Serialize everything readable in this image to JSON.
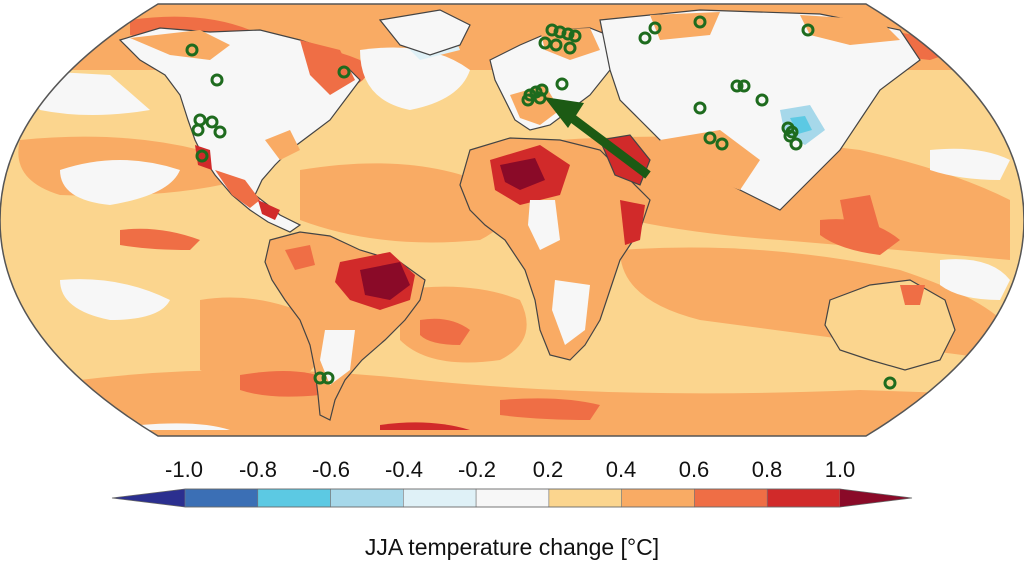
{
  "map": {
    "projection": "robinson-like",
    "land_outline_color": "#444444",
    "ocean_base_color": "#fbd58e",
    "marker_color": "#1e6b1e",
    "arrow_color": "#1c5a14",
    "arrow_direction": "from Arabian Peninsula toward Central Europe",
    "marker_count": 38
  },
  "legend": {
    "caption": "JJA temperature change [°C]",
    "ticks": [
      "-1.0",
      "-0.8",
      "-0.6",
      "-0.4",
      "-0.2",
      "0.2",
      "0.4",
      "0.6",
      "0.8",
      "1.0"
    ],
    "min_color": "#2b2f8f",
    "max_color": "#8a0a28",
    "bins": [
      {
        "from": -1.0,
        "to": -0.8,
        "color": "#3b6fb5"
      },
      {
        "from": -0.8,
        "to": -0.6,
        "color": "#5cc9e3"
      },
      {
        "from": -0.6,
        "to": -0.4,
        "color": "#a6d8ea"
      },
      {
        "from": -0.4,
        "to": -0.2,
        "color": "#dff1f7"
      },
      {
        "from": -0.2,
        "to": 0.2,
        "color": "#f7f7f7"
      },
      {
        "from": 0.2,
        "to": 0.4,
        "color": "#fbd58e"
      },
      {
        "from": 0.4,
        "to": 0.6,
        "color": "#f9ab64"
      },
      {
        "from": 0.6,
        "to": 0.8,
        "color": "#ef6e45"
      },
      {
        "from": 0.8,
        "to": 1.0,
        "color": "#d12a2a"
      }
    ]
  }
}
